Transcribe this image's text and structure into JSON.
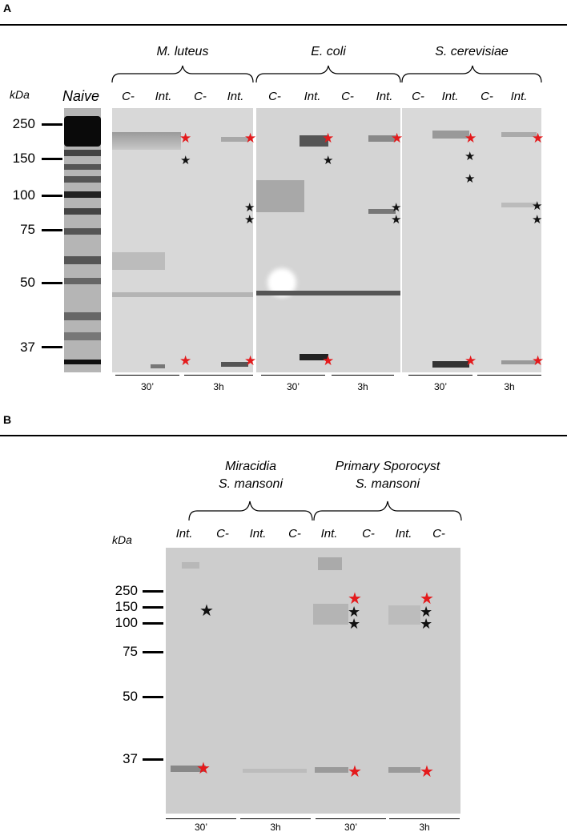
{
  "panelA": {
    "label": "A",
    "kda_label": "kDa",
    "naive_label": "Naive",
    "markers": [
      "250",
      "150",
      "100",
      "75",
      "50",
      "37"
    ],
    "organisms": [
      "M. luteus",
      "E. coli",
      "S. cerevisiae"
    ],
    "lanes": [
      "C-",
      "Int.",
      "C-",
      "Int.",
      "C-",
      "Int.",
      "C-",
      "Int.",
      "C-",
      "Int.",
      "C-",
      "Int."
    ],
    "times": [
      "30’",
      "3h",
      "30’",
      "3h",
      "30’",
      "3h"
    ]
  },
  "panelB": {
    "label": "B",
    "kda_label": "kDa",
    "markers": [
      "250",
      "150",
      "100",
      "75",
      "50",
      "37"
    ],
    "group1": {
      "line1": "Miracidia",
      "line2": "S. mansoni"
    },
    "group2": {
      "line1": "Primary Sporocyst",
      "line2": "S. mansoni"
    },
    "lanes": [
      "Int.",
      "C-",
      "Int.",
      "C-",
      "Int.",
      "C-",
      "Int.",
      "C-"
    ],
    "times": [
      "30’",
      "3h",
      "30’",
      "3h"
    ]
  },
  "star_colors": {
    "red": "#e41a1c",
    "black": "#111111"
  },
  "star_glyph": "★"
}
